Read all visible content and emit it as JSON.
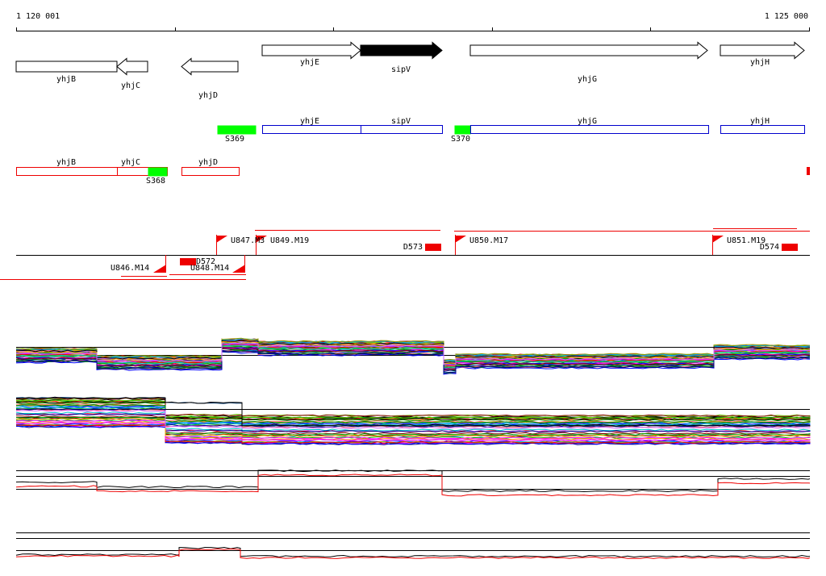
{
  "coordinates": {
    "start": "1 120 001",
    "end": "1 125 000"
  },
  "genes": [
    {
      "label": "yhjB"
    },
    {
      "label": "yhjC"
    },
    {
      "label": "yhjD"
    },
    {
      "label": "yhjE"
    },
    {
      "label": "sipV"
    },
    {
      "label": "yhjG"
    },
    {
      "label": "yhjH"
    }
  ],
  "features_forward": [
    {
      "label": "S369"
    },
    {
      "label": "yhjE"
    },
    {
      "label": "sipV"
    },
    {
      "label": "S370"
    },
    {
      "label": "yhjG"
    },
    {
      "label": "yhjH"
    }
  ],
  "features_reverse": [
    {
      "label": "yhjB"
    },
    {
      "label": "yhjC"
    },
    {
      "label": "S368"
    },
    {
      "label": "yhjD"
    }
  ],
  "transcripts": [
    {
      "label": "U847.M3"
    },
    {
      "label": "U849.M19"
    },
    {
      "label": "D573"
    },
    {
      "label": "U850.M17"
    },
    {
      "label": "U851.M19"
    },
    {
      "label": "D574"
    },
    {
      "label": "U846.M14"
    },
    {
      "label": "D572"
    },
    {
      "label": "U848.M14"
    }
  ]
}
